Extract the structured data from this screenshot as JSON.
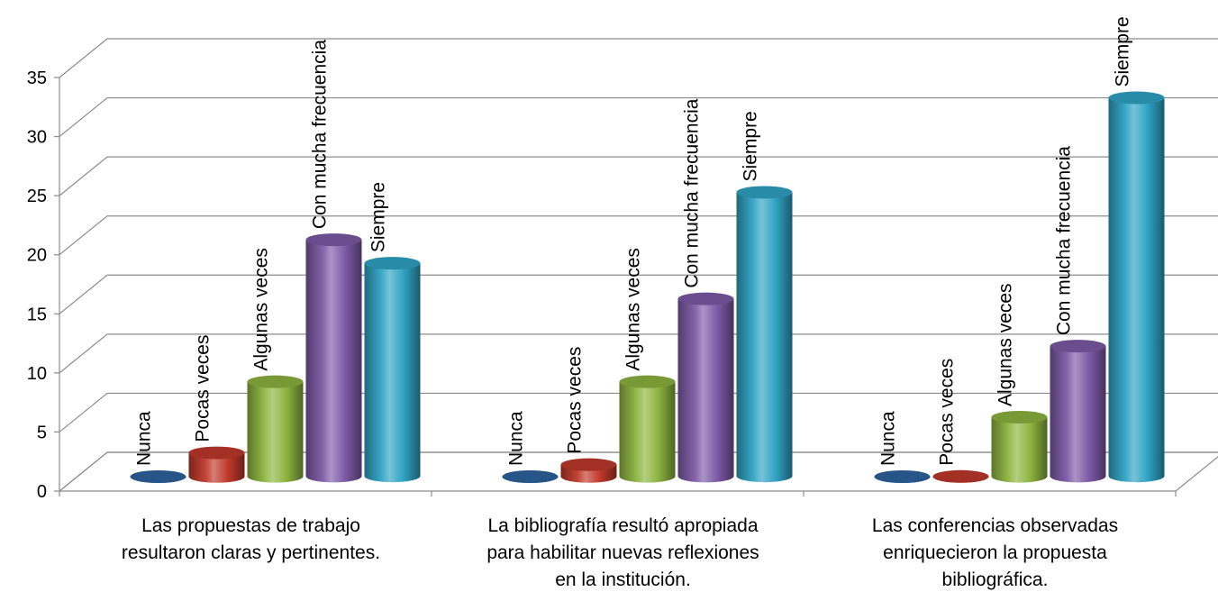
{
  "chart_data": {
    "type": "bar",
    "style": "3d-cylinder",
    "categories": [
      [
        "Las propuestas de trabajo",
        "resultaron claras y pertinentes."
      ],
      [
        "La bibliografía resultó apropiada",
        "para habilitar nuevas reflexiones",
        "en la institución."
      ],
      [
        "Las conferencias observadas",
        "enriquecieron la propuesta",
        "bibliográfica."
      ]
    ],
    "series": [
      {
        "name": "Nunca",
        "color": "#2E64A0",
        "values": [
          0,
          0,
          0
        ]
      },
      {
        "name": "Pocas veces",
        "color": "#C0392B",
        "values": [
          2,
          1,
          0
        ]
      },
      {
        "name": "Algunas veces",
        "color": "#8DB43F",
        "values": [
          8,
          8,
          5
        ]
      },
      {
        "name": "Con mucha frecuencia",
        "color": "#7D5AA6",
        "values": [
          20,
          15,
          11
        ]
      },
      {
        "name": "Siempre",
        "color": "#2FA3C4",
        "values": [
          18,
          24,
          32
        ]
      }
    ],
    "ylim": [
      0,
      35
    ],
    "yticks": [
      0,
      5,
      10,
      15,
      20,
      25,
      30,
      35
    ],
    "grid": true,
    "legend": "none",
    "data_labels": "series-name, rotated"
  }
}
